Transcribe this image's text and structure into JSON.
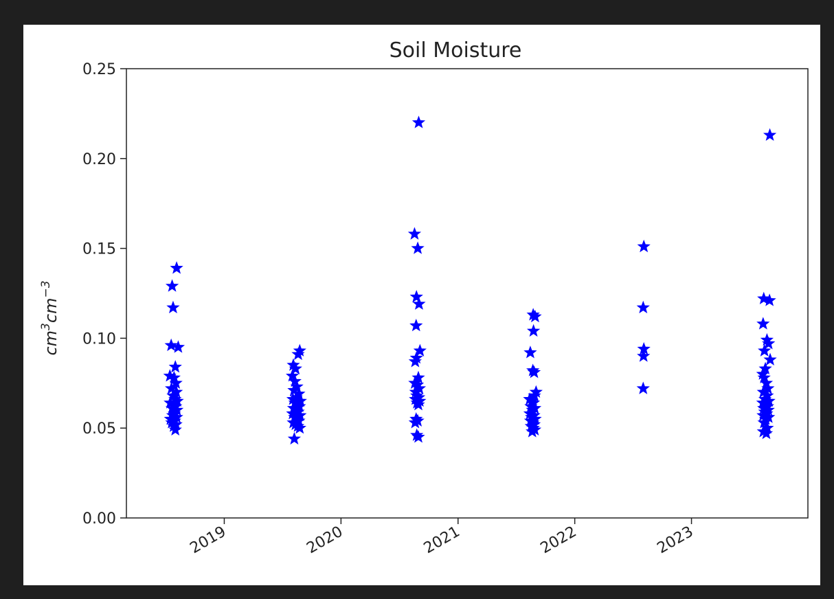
{
  "chart_data": {
    "type": "scatter",
    "title": "Soil Moisture",
    "xlabel": "",
    "ylabel": "cm3cm−3",
    "ylabel_parts": {
      "base1": "cm",
      "sup1": "3",
      "base2": "cm",
      "sup2": "−3"
    },
    "ylim": [
      0.0,
      0.25
    ],
    "yticks": [
      0.0,
      0.05,
      0.1,
      0.15,
      0.2,
      0.25
    ],
    "ytick_labels": [
      "0.00",
      "0.05",
      "0.10",
      "0.15",
      "0.20",
      "0.25"
    ],
    "xlim": [
      "2018-03-01",
      "2023-12-31"
    ],
    "xticks": [
      "2019-01-01",
      "2020-01-01",
      "2021-01-01",
      "2022-01-01",
      "2023-01-01"
    ],
    "xtick_labels": [
      "2019",
      "2020",
      "2021",
      "2022",
      "2023"
    ],
    "xtick_rotation": -30,
    "marker": "star",
    "grid": false,
    "color": "#0000ff",
    "series": [
      {
        "points": [
          {
            "x": "2018-08-05",
            "y": 0.139
          },
          {
            "x": "2018-07-22",
            "y": 0.129
          },
          {
            "x": "2018-07-25",
            "y": 0.117
          },
          {
            "x": "2018-07-19",
            "y": 0.096
          },
          {
            "x": "2018-08-10",
            "y": 0.095
          },
          {
            "x": "2018-08-01",
            "y": 0.084
          },
          {
            "x": "2018-07-15",
            "y": 0.079
          },
          {
            "x": "2018-07-28",
            "y": 0.078
          },
          {
            "x": "2018-08-03",
            "y": 0.075
          },
          {
            "x": "2018-07-20",
            "y": 0.072
          },
          {
            "x": "2018-08-04",
            "y": 0.07
          },
          {
            "x": "2018-07-25",
            "y": 0.068
          },
          {
            "x": "2018-07-31",
            "y": 0.066
          },
          {
            "x": "2018-08-07",
            "y": 0.065
          },
          {
            "x": "2018-07-16",
            "y": 0.064
          },
          {
            "x": "2018-07-26",
            "y": 0.063
          },
          {
            "x": "2018-08-02",
            "y": 0.062
          },
          {
            "x": "2018-07-22",
            "y": 0.061
          },
          {
            "x": "2018-08-06",
            "y": 0.06
          },
          {
            "x": "2018-07-29",
            "y": 0.058
          },
          {
            "x": "2018-07-24",
            "y": 0.057
          },
          {
            "x": "2018-08-05",
            "y": 0.056
          },
          {
            "x": "2018-07-17",
            "y": 0.055
          },
          {
            "x": "2018-07-30",
            "y": 0.054
          },
          {
            "x": "2018-07-21",
            "y": 0.053
          },
          {
            "x": "2018-08-03",
            "y": 0.052
          },
          {
            "x": "2018-07-27",
            "y": 0.051
          },
          {
            "x": "2018-08-01",
            "y": 0.049
          }
        ]
      },
      {
        "points": [
          {
            "x": "2019-08-25",
            "y": 0.093
          },
          {
            "x": "2019-08-20",
            "y": 0.091
          },
          {
            "x": "2019-08-05",
            "y": 0.085
          },
          {
            "x": "2019-08-12",
            "y": 0.083
          },
          {
            "x": "2019-08-02",
            "y": 0.079
          },
          {
            "x": "2019-08-10",
            "y": 0.076
          },
          {
            "x": "2019-08-16",
            "y": 0.073
          },
          {
            "x": "2019-08-07",
            "y": 0.071
          },
          {
            "x": "2019-08-22",
            "y": 0.069
          },
          {
            "x": "2019-08-14",
            "y": 0.067
          },
          {
            "x": "2019-08-04",
            "y": 0.066
          },
          {
            "x": "2019-08-27",
            "y": 0.065
          },
          {
            "x": "2019-08-10",
            "y": 0.064
          },
          {
            "x": "2019-08-18",
            "y": 0.063
          },
          {
            "x": "2019-08-24",
            "y": 0.062
          },
          {
            "x": "2019-08-06",
            "y": 0.061
          },
          {
            "x": "2019-08-13",
            "y": 0.06
          },
          {
            "x": "2019-08-20",
            "y": 0.059
          },
          {
            "x": "2019-08-03",
            "y": 0.058
          },
          {
            "x": "2019-08-26",
            "y": 0.057
          },
          {
            "x": "2019-08-09",
            "y": 0.056
          },
          {
            "x": "2019-08-16",
            "y": 0.055
          },
          {
            "x": "2019-08-22",
            "y": 0.054
          },
          {
            "x": "2019-08-05",
            "y": 0.053
          },
          {
            "x": "2019-08-12",
            "y": 0.052
          },
          {
            "x": "2019-08-19",
            "y": 0.051
          },
          {
            "x": "2019-08-25",
            "y": 0.05
          },
          {
            "x": "2019-08-08",
            "y": 0.044
          }
        ]
      },
      {
        "points": [
          {
            "x": "2020-08-31",
            "y": 0.22
          },
          {
            "x": "2020-08-18",
            "y": 0.158
          },
          {
            "x": "2020-08-28",
            "y": 0.15
          },
          {
            "x": "2020-08-24",
            "y": 0.123
          },
          {
            "x": "2020-09-01",
            "y": 0.119
          },
          {
            "x": "2020-08-23",
            "y": 0.107
          },
          {
            "x": "2020-09-04",
            "y": 0.093
          },
          {
            "x": "2020-08-24",
            "y": 0.089
          },
          {
            "x": "2020-08-20",
            "y": 0.087
          },
          {
            "x": "2020-08-30",
            "y": 0.078
          },
          {
            "x": "2020-08-19",
            "y": 0.075
          },
          {
            "x": "2020-08-27",
            "y": 0.074
          },
          {
            "x": "2020-09-02",
            "y": 0.072
          },
          {
            "x": "2020-08-22",
            "y": 0.07
          },
          {
            "x": "2020-08-25",
            "y": 0.068
          },
          {
            "x": "2020-08-31",
            "y": 0.067
          },
          {
            "x": "2020-08-21",
            "y": 0.066
          },
          {
            "x": "2020-09-03",
            "y": 0.065
          },
          {
            "x": "2020-08-26",
            "y": 0.064
          },
          {
            "x": "2020-08-30",
            "y": 0.063
          },
          {
            "x": "2020-08-23",
            "y": 0.055
          },
          {
            "x": "2020-08-28",
            "y": 0.054
          },
          {
            "x": "2020-08-20",
            "y": 0.053
          },
          {
            "x": "2020-08-25",
            "y": 0.046
          },
          {
            "x": "2020-08-30",
            "y": 0.045
          }
        ]
      },
      {
        "points": [
          {
            "x": "2021-08-24",
            "y": 0.113
          },
          {
            "x": "2021-08-30",
            "y": 0.112
          },
          {
            "x": "2021-08-25",
            "y": 0.104
          },
          {
            "x": "2021-08-15",
            "y": 0.092
          },
          {
            "x": "2021-08-23",
            "y": 0.082
          },
          {
            "x": "2021-08-27",
            "y": 0.081
          },
          {
            "x": "2021-09-02",
            "y": 0.07
          },
          {
            "x": "2021-08-28",
            "y": 0.068
          },
          {
            "x": "2021-08-13",
            "y": 0.066
          },
          {
            "x": "2021-08-20",
            "y": 0.065
          },
          {
            "x": "2021-08-25",
            "y": 0.064
          },
          {
            "x": "2021-08-17",
            "y": 0.062
          },
          {
            "x": "2021-08-29",
            "y": 0.061
          },
          {
            "x": "2021-08-22",
            "y": 0.06
          },
          {
            "x": "2021-08-14",
            "y": 0.058
          },
          {
            "x": "2021-08-26",
            "y": 0.057
          },
          {
            "x": "2021-08-19",
            "y": 0.056
          },
          {
            "x": "2021-08-30",
            "y": 0.055
          },
          {
            "x": "2021-08-16",
            "y": 0.054
          },
          {
            "x": "2021-08-23",
            "y": 0.053
          },
          {
            "x": "2021-08-27",
            "y": 0.052
          },
          {
            "x": "2021-08-18",
            "y": 0.051
          },
          {
            "x": "2021-08-24",
            "y": 0.05
          },
          {
            "x": "2021-08-29",
            "y": 0.049
          },
          {
            "x": "2021-08-21",
            "y": 0.048
          }
        ]
      },
      {
        "points": [
          {
            "x": "2022-08-05",
            "y": 0.151
          },
          {
            "x": "2022-08-03",
            "y": 0.117
          },
          {
            "x": "2022-08-05",
            "y": 0.094
          },
          {
            "x": "2022-08-04",
            "y": 0.09
          },
          {
            "x": "2022-08-03",
            "y": 0.072
          }
        ]
      },
      {
        "points": [
          {
            "x": "2023-09-03",
            "y": 0.213
          },
          {
            "x": "2023-08-15",
            "y": 0.122
          },
          {
            "x": "2023-09-02",
            "y": 0.121
          },
          {
            "x": "2023-08-13",
            "y": 0.108
          },
          {
            "x": "2023-08-25",
            "y": 0.099
          },
          {
            "x": "2023-08-30",
            "y": 0.097
          },
          {
            "x": "2023-08-17",
            "y": 0.093
          },
          {
            "x": "2023-09-04",
            "y": 0.088
          },
          {
            "x": "2023-08-20",
            "y": 0.083
          },
          {
            "x": "2023-08-12",
            "y": 0.08
          },
          {
            "x": "2023-08-16",
            "y": 0.078
          },
          {
            "x": "2023-08-23",
            "y": 0.075
          },
          {
            "x": "2023-08-28",
            "y": 0.072
          },
          {
            "x": "2023-08-14",
            "y": 0.07
          },
          {
            "x": "2023-08-26",
            "y": 0.068
          },
          {
            "x": "2023-08-19",
            "y": 0.066
          },
          {
            "x": "2023-08-31",
            "y": 0.065
          },
          {
            "x": "2023-08-12",
            "y": 0.064
          },
          {
            "x": "2023-08-22",
            "y": 0.063
          },
          {
            "x": "2023-08-27",
            "y": 0.062
          },
          {
            "x": "2023-08-15",
            "y": 0.061
          },
          {
            "x": "2023-08-29",
            "y": 0.06
          },
          {
            "x": "2023-08-18",
            "y": 0.059
          },
          {
            "x": "2023-08-24",
            "y": 0.058
          },
          {
            "x": "2023-08-13",
            "y": 0.057
          },
          {
            "x": "2023-08-30",
            "y": 0.056
          },
          {
            "x": "2023-08-21",
            "y": 0.055
          },
          {
            "x": "2023-08-16",
            "y": 0.053
          },
          {
            "x": "2023-08-26",
            "y": 0.05
          },
          {
            "x": "2023-08-14",
            "y": 0.048
          },
          {
            "x": "2023-08-23",
            "y": 0.047
          }
        ]
      }
    ]
  }
}
